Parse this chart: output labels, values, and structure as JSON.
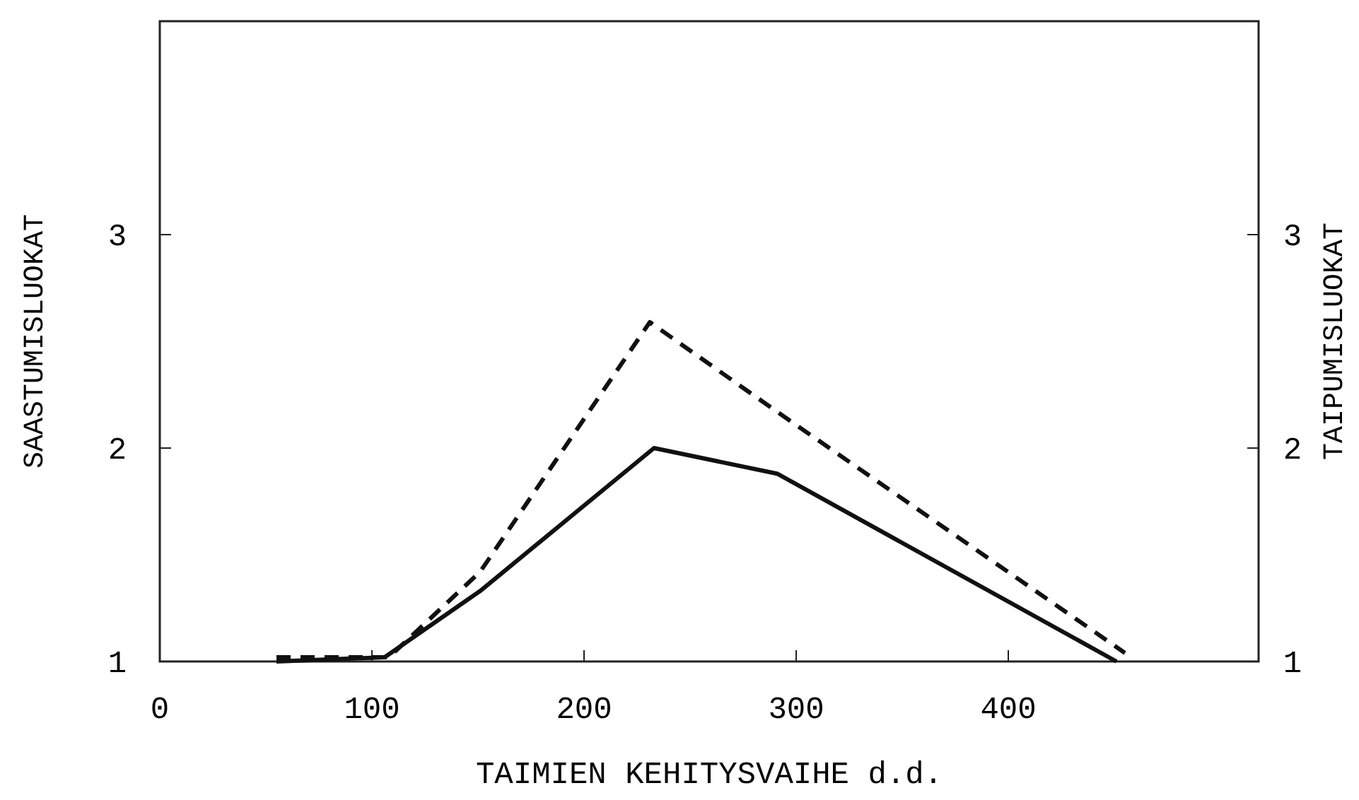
{
  "chart_data": {
    "type": "line",
    "xlabel": "TAIMIEN KEHITYSVAIHE d.d.",
    "ylabel": "SAASTUMISLUOKAT",
    "y2label": "TAIPUMISLUOKAT",
    "xlim": [
      0,
      518
    ],
    "xticks": [
      0,
      100,
      200,
      300,
      400
    ],
    "ylim": [
      1,
      4
    ],
    "yticks": [
      1,
      2,
      3
    ],
    "y2lim": [
      1,
      4
    ],
    "y2ticks": [
      1,
      2,
      3
    ],
    "grid": false,
    "marker": "none",
    "series": [
      {
        "color": "#111111",
        "line_style": "solid",
        "x": [
          55,
          106,
          151,
          233,
          291,
          451
        ],
        "values": [
          1.0,
          1.02,
          1.33,
          2.0,
          1.88,
          1.0
        ]
      },
      {
        "color": "#111111",
        "line_style": "dashed",
        "x": [
          55,
          108,
          151,
          231,
          291,
          455
        ],
        "values": [
          1.02,
          1.02,
          1.42,
          2.59,
          2.17,
          1.04
        ]
      }
    ]
  }
}
